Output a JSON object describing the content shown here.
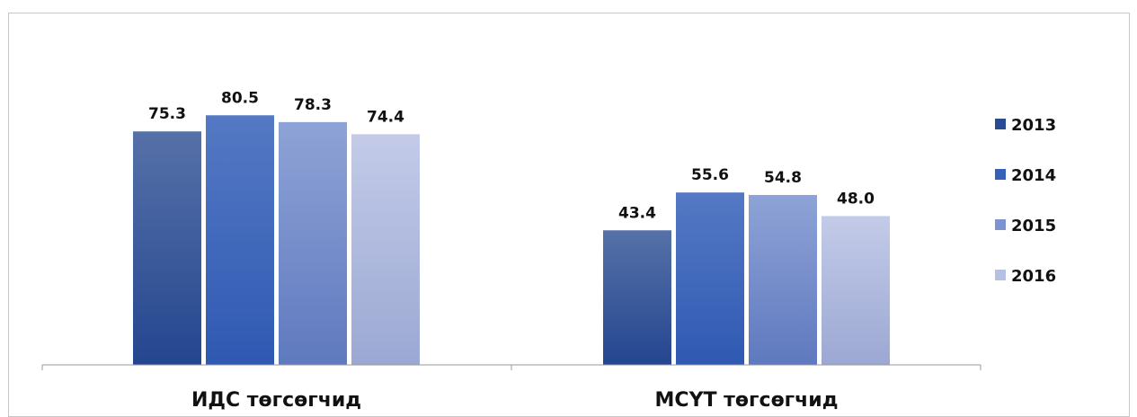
{
  "chart_data": {
    "type": "bar",
    "categories": [
      "ИДС төгсөгчид",
      "МСҮТ төгсөгчид"
    ],
    "series": [
      {
        "name": "2013",
        "values": [
          75.3,
          43.4
        ],
        "color_top": "#5671a8",
        "color_bottom": "#24468f",
        "legend_color": "#2a4b8f"
      },
      {
        "name": "2014",
        "values": [
          80.5,
          55.6
        ],
        "color_top": "#5479c4",
        "color_bottom": "#2f59b2",
        "legend_color": "#3661b8"
      },
      {
        "name": "2015",
        "values": [
          78.3,
          54.8
        ],
        "color_top": "#8ea3d6",
        "color_bottom": "#5f79bf",
        "legend_color": "#7d94cf"
      },
      {
        "name": "2016",
        "values": [
          74.4,
          48.0
        ],
        "color_top": "#c3cbe8",
        "color_bottom": "#9ba8d3",
        "legend_color": "#b6c0e3"
      }
    ],
    "value_format": "0.0",
    "ylim": [
      0,
      100
    ],
    "grid": false,
    "legend_position": "right",
    "title": "",
    "xlabel": "",
    "ylabel": ""
  }
}
